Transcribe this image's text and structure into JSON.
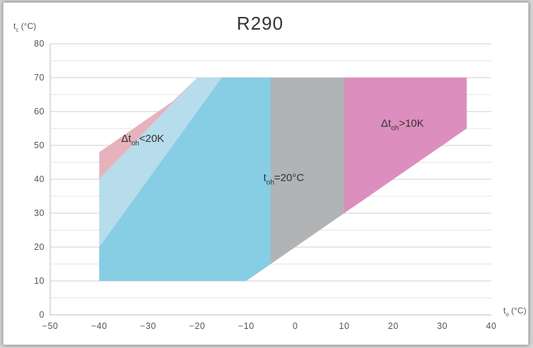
{
  "chart_data": {
    "type": "area",
    "title": "R290",
    "xlabel": {
      "main": "t",
      "sub": "o",
      "unit": " (°C)"
    },
    "ylabel": {
      "main": "t",
      "sub": "c",
      "unit": " (°C)"
    },
    "xlim": [
      -50,
      40
    ],
    "ylim": [
      0,
      80
    ],
    "xticks": [
      -50,
      -40,
      -30,
      -20,
      -10,
      0,
      10,
      20,
      30,
      40
    ],
    "yticks": [
      0,
      10,
      20,
      30,
      40,
      50,
      60,
      70,
      80
    ],
    "x_tick_labels": [
      "−50",
      "−40",
      "−30",
      "−20",
      "−10",
      "0",
      "10",
      "20",
      "30",
      "40"
    ],
    "y_tick_labels": [
      "0",
      "10",
      "20",
      "30",
      "40",
      "50",
      "60",
      "70",
      "80"
    ],
    "minor_gridlines_y": [
      5,
      15,
      25,
      35,
      45,
      55,
      65,
      75
    ],
    "grid": true,
    "regions": [
      {
        "color": "#e6b3bd",
        "points": [
          [
            -40,
            48
          ],
          [
            -25,
            63
          ],
          [
            -20,
            70
          ],
          [
            -40,
            40
          ]
        ]
      },
      {
        "color": "#b7dceb",
        "points": [
          [
            -40,
            40
          ],
          [
            -20,
            70
          ],
          [
            -15,
            70
          ],
          [
            -40,
            20
          ]
        ]
      },
      {
        "color": "#87cde3",
        "points": [
          [
            -40,
            20
          ],
          [
            -15,
            70
          ],
          [
            -5,
            70
          ],
          [
            -5,
            15
          ],
          [
            -10,
            10
          ],
          [
            -40,
            10
          ]
        ]
      },
      {
        "color": "#b2b3b5",
        "points": [
          [
            -5,
            70
          ],
          [
            10,
            70
          ],
          [
            10,
            30
          ],
          [
            -5,
            15
          ]
        ]
      },
      {
        "color": "#dc8ebe",
        "points": [
          [
            10,
            70
          ],
          [
            35,
            70
          ],
          [
            35,
            55
          ],
          [
            10,
            30
          ]
        ]
      }
    ],
    "annotations": [
      {
        "main": "Δt",
        "sub": "oh",
        "rest": "<20K",
        "x": -35.5,
        "y": 51
      },
      {
        "main": "t",
        "sub": "oh",
        "rest": "=20°C",
        "x": -6.5,
        "y": 39.5
      },
      {
        "main": "Δt",
        "sub": "oh",
        "rest": ">10K",
        "x": 17.5,
        "y": 55.5
      }
    ]
  }
}
